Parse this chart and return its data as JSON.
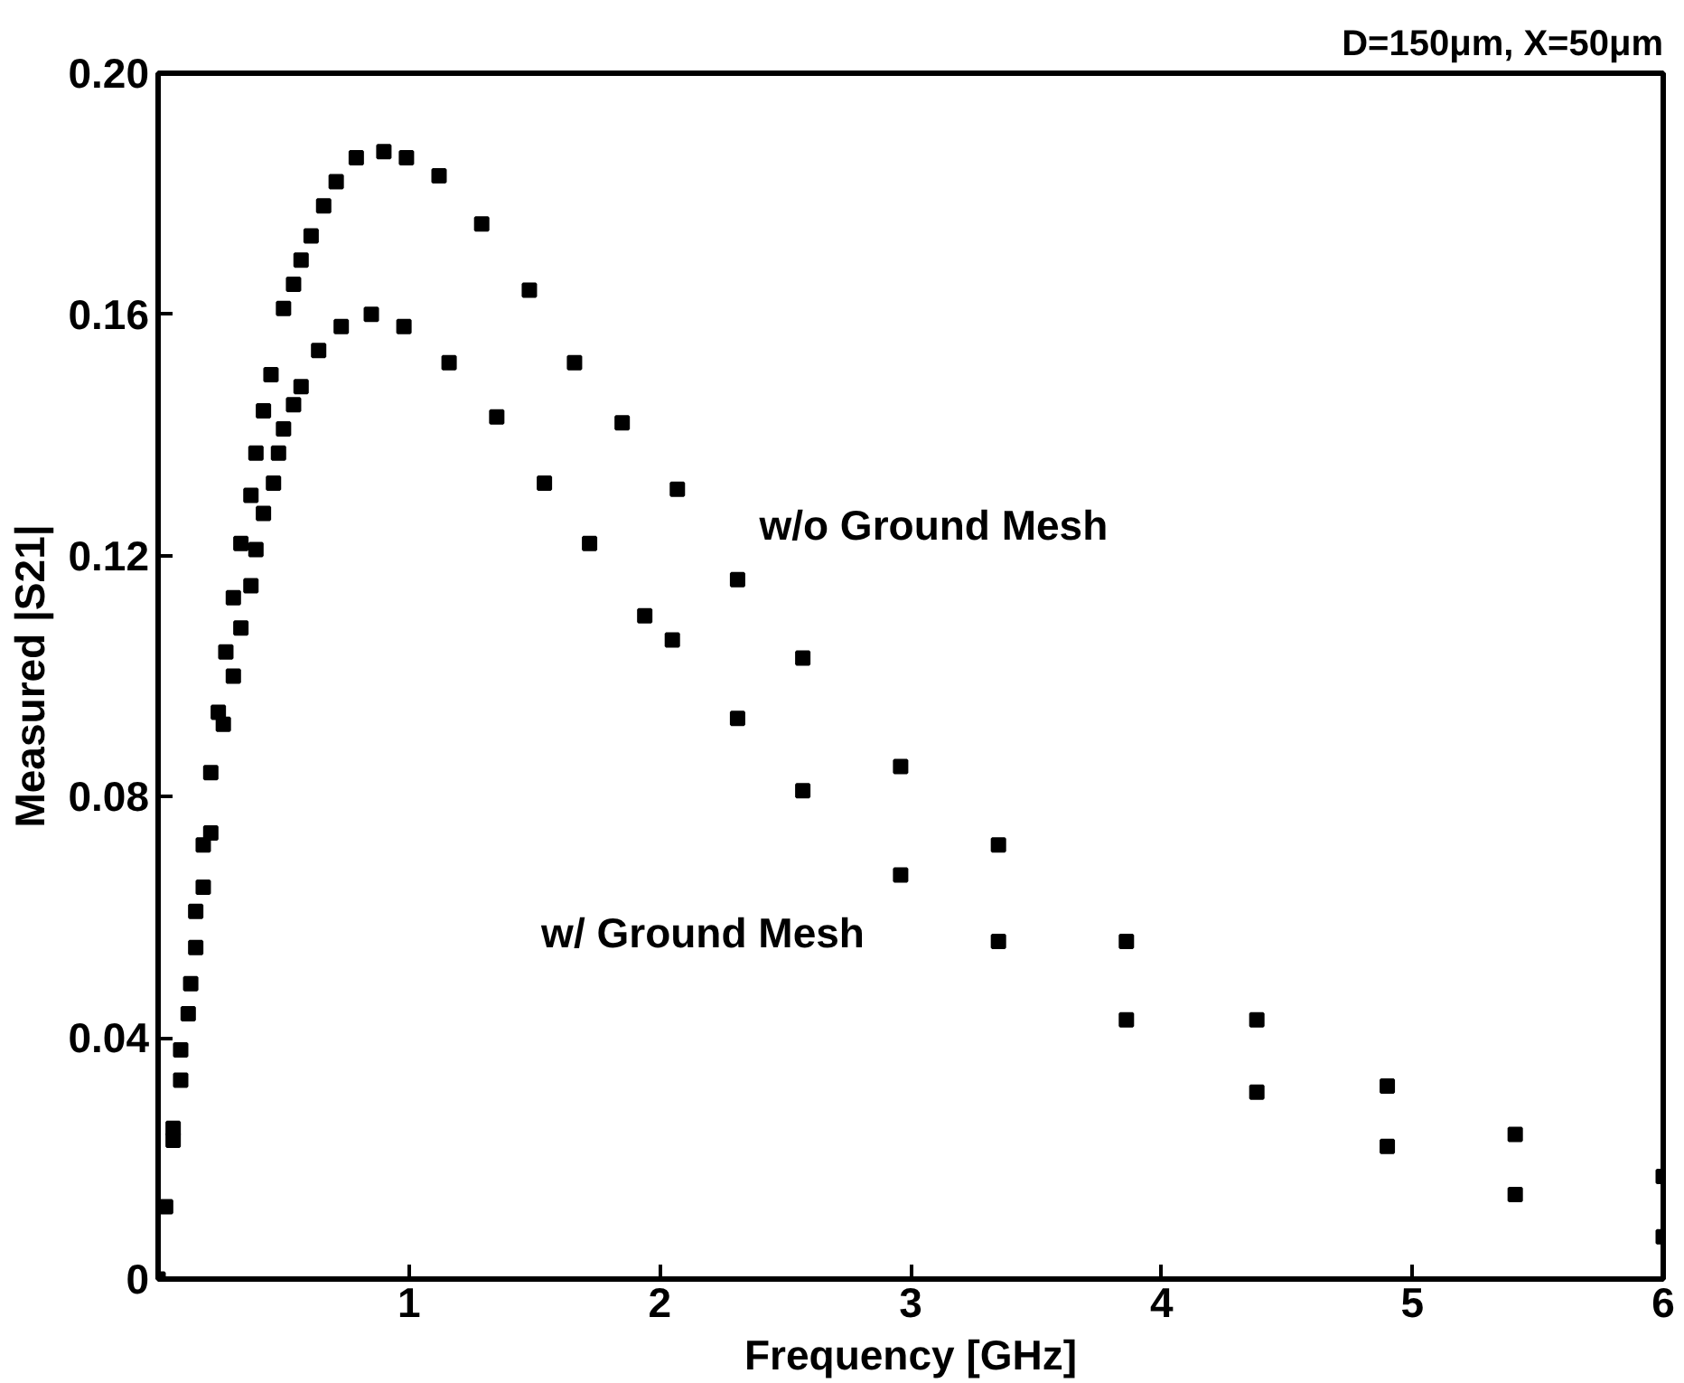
{
  "chart_data": {
    "type": "scatter",
    "title": "D=150μm, X=50μm",
    "xlabel": "Frequency [GHz]",
    "ylabel": "Measured |S21|",
    "xlim": [
      0,
      6
    ],
    "ylim": [
      0,
      0.2
    ],
    "xticks": [
      1,
      2,
      3,
      4,
      5,
      6
    ],
    "yticks": [
      0,
      0.04,
      0.08,
      0.12,
      0.16,
      {
        "value": 0.2,
        "label": "0.20"
      }
    ],
    "grid": false,
    "marker": "square",
    "series": [
      {
        "name": "w/o Ground Mesh",
        "color": "#000000",
        "x": [
          0,
          0.03,
          0.06,
          0.09,
          0.13,
          0.15,
          0.18,
          0.21,
          0.24,
          0.27,
          0.3,
          0.33,
          0.37,
          0.39,
          0.42,
          0.45,
          0.5,
          0.54,
          0.57,
          0.61,
          0.66,
          0.71,
          0.79,
          0.9,
          0.99,
          1.12,
          1.29,
          1.48,
          1.66,
          1.85,
          2.07,
          2.31,
          2.57,
          2.96,
          3.35,
          3.86,
          4.38,
          4.9,
          5.41,
          6.0
        ],
        "values": [
          0,
          0.012,
          0.025,
          0.038,
          0.049,
          0.061,
          0.072,
          0.084,
          0.094,
          0.104,
          0.113,
          0.122,
          0.13,
          0.137,
          0.144,
          0.15,
          0.161,
          0.165,
          0.169,
          0.173,
          0.178,
          0.182,
          0.186,
          0.187,
          0.186,
          0.183,
          0.175,
          0.164,
          0.152,
          0.142,
          0.131,
          0.116,
          0.103,
          0.085,
          0.072,
          0.056,
          0.043,
          0.032,
          0.024,
          0.017
        ]
      },
      {
        "name": "w/ Ground Mesh",
        "color": "#000000",
        "x": [
          0.06,
          0.09,
          0.12,
          0.15,
          0.18,
          0.21,
          0.26,
          0.3,
          0.33,
          0.37,
          0.39,
          0.42,
          0.46,
          0.48,
          0.5,
          0.54,
          0.57,
          0.64,
          0.73,
          0.85,
          0.98,
          1.16,
          1.35,
          1.54,
          1.72,
          1.94,
          2.05,
          2.31,
          2.57,
          2.96,
          3.35,
          3.86,
          4.38,
          4.9,
          5.41,
          6.0
        ],
        "values": [
          0.023,
          0.033,
          0.044,
          0.055,
          0.065,
          0.074,
          0.092,
          0.1,
          0.108,
          0.115,
          0.121,
          0.127,
          0.132,
          0.137,
          0.141,
          0.145,
          0.148,
          0.154,
          0.158,
          0.16,
          0.158,
          0.152,
          0.143,
          0.132,
          0.122,
          0.11,
          0.106,
          0.093,
          0.081,
          0.067,
          0.056,
          0.043,
          0.031,
          0.022,
          0.014,
          0.007
        ]
      }
    ]
  }
}
